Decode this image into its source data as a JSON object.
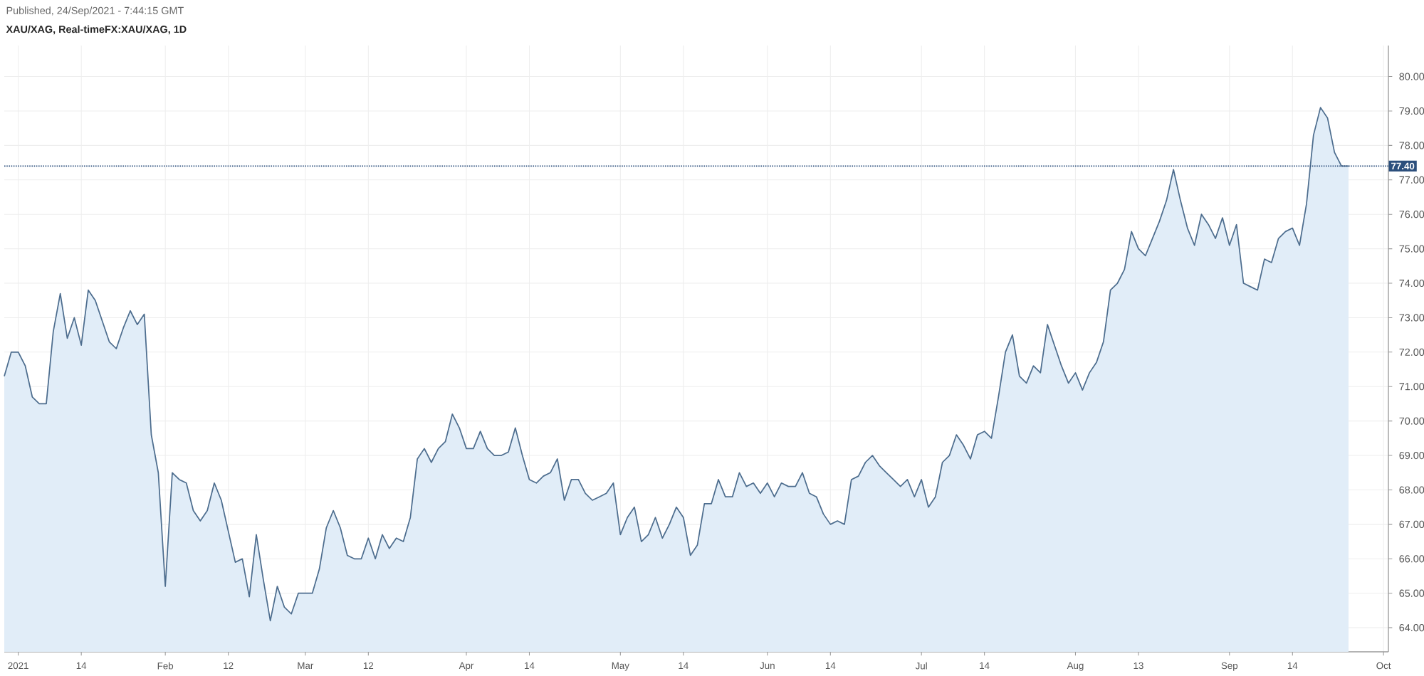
{
  "chart_data": {
    "type": "area",
    "title": "XAU/XAG, Real-timeFX:XAU/XAG, 1D",
    "annotations": [
      "Published, 24/Sep/2021 - 7:44:15 GMT"
    ],
    "categories": [
      null,
      null,
      "2021",
      null,
      null,
      null,
      null,
      null,
      null,
      null,
      null,
      "14",
      null,
      null,
      null,
      null,
      null,
      null,
      null,
      null,
      null,
      null,
      null,
      "Feb",
      null,
      null,
      null,
      null,
      null,
      null,
      null,
      null,
      "12",
      null,
      null,
      null,
      null,
      null,
      null,
      null,
      null,
      null,
      null,
      "Mar",
      null,
      null,
      null,
      null,
      null,
      null,
      null,
      null,
      "12",
      null,
      null,
      null,
      null,
      null,
      null,
      null,
      null,
      null,
      null,
      null,
      null,
      null,
      "Apr",
      null,
      null,
      null,
      null,
      null,
      null,
      null,
      null,
      "14",
      null,
      null,
      null,
      null,
      null,
      null,
      null,
      null,
      null,
      null,
      null,
      null,
      "May",
      null,
      null,
      null,
      null,
      null,
      null,
      null,
      null,
      "14",
      null,
      null,
      null,
      null,
      null,
      null,
      null,
      null,
      null,
      null,
      null,
      "Jun",
      null,
      null,
      null,
      null,
      null,
      null,
      null,
      null,
      "14",
      null,
      null,
      null,
      null,
      null,
      null,
      null,
      null,
      null,
      null,
      null,
      null,
      "Jul",
      null,
      null,
      null,
      null,
      null,
      null,
      null,
      null,
      "14",
      null,
      null,
      null,
      null,
      null,
      null,
      null,
      null,
      null,
      null,
      null,
      null,
      "Aug",
      null,
      null,
      null,
      null,
      null,
      null,
      null,
      null,
      "13",
      null,
      null,
      null,
      null,
      null,
      null,
      null,
      null,
      null,
      null,
      null,
      null,
      "Sep",
      null,
      null,
      null,
      null,
      null,
      null,
      null,
      null,
      "14",
      null,
      null,
      null,
      null,
      null,
      null,
      null,
      null,
      null,
      null,
      null,
      null,
      "Oct"
    ],
    "values": [
      71.3,
      72.0,
      72.0,
      71.6,
      70.7,
      70.5,
      70.5,
      72.6,
      73.7,
      72.4,
      73.0,
      72.2,
      73.8,
      73.5,
      72.9,
      72.3,
      72.1,
      72.7,
      73.2,
      72.8,
      73.1,
      69.6,
      68.5,
      65.2,
      68.5,
      68.3,
      68.2,
      67.4,
      67.1,
      67.4,
      68.2,
      67.7,
      66.8,
      65.9,
      66.0,
      64.9,
      66.7,
      65.4,
      64.2,
      65.2,
      64.6,
      64.4,
      65.0,
      65.0,
      65.0,
      65.7,
      66.9,
      67.4,
      66.9,
      66.1,
      66.0,
      66.0,
      66.6,
      66.0,
      66.7,
      66.3,
      66.6,
      66.5,
      67.2,
      68.9,
      69.2,
      68.8,
      69.2,
      69.4,
      70.2,
      69.8,
      69.2,
      69.2,
      69.7,
      69.2,
      69.0,
      69.0,
      69.1,
      69.8,
      69.0,
      68.3,
      68.2,
      68.4,
      68.5,
      68.9,
      67.7,
      68.3,
      68.3,
      67.9,
      67.7,
      67.8,
      67.9,
      68.2,
      66.7,
      67.2,
      67.5,
      66.5,
      66.7,
      67.2,
      66.6,
      67.0,
      67.5,
      67.2,
      66.1,
      66.4,
      67.6,
      67.6,
      68.3,
      67.8,
      67.8,
      68.5,
      68.1,
      68.2,
      67.9,
      68.2,
      67.8,
      68.2,
      68.1,
      68.1,
      68.5,
      67.9,
      67.8,
      67.3,
      67.0,
      67.1,
      67.0,
      68.3,
      68.4,
      68.8,
      69.0,
      68.7,
      68.5,
      68.3,
      68.1,
      68.3,
      67.8,
      68.3,
      67.5,
      67.8,
      68.8,
      69.0,
      69.6,
      69.3,
      68.9,
      69.6,
      69.7,
      69.5,
      70.7,
      72.0,
      72.5,
      71.3,
      71.1,
      71.6,
      71.4,
      72.8,
      72.2,
      71.6,
      71.1,
      71.4,
      70.9,
      71.4,
      71.7,
      72.3,
      73.8,
      74.0,
      74.4,
      75.5,
      75.0,
      74.8,
      75.3,
      75.8,
      76.4,
      77.3,
      76.4,
      75.6,
      75.1,
      76.0,
      75.7,
      75.3,
      75.9,
      75.1,
      75.7,
      74.0,
      73.9,
      73.8,
      74.7,
      74.6,
      75.3,
      75.5,
      75.6,
      75.1,
      76.3,
      78.3,
      79.1,
      78.8,
      77.8,
      77.4,
      77.4,
      null,
      null,
      null,
      null,
      null
    ],
    "color": "#4d6d8e",
    "ylim": [
      63.3,
      80.9
    ],
    "yticks": [
      {
        "value": 64,
        "label": "64.00"
      },
      {
        "value": 65,
        "label": "65.00"
      },
      {
        "value": 66,
        "label": "66.00"
      },
      {
        "value": 67,
        "label": "67.00"
      },
      {
        "value": 68,
        "label": "68.00"
      },
      {
        "value": 69,
        "label": "69.00"
      },
      {
        "value": 70,
        "label": "70.00"
      },
      {
        "value": 71,
        "label": "71.00"
      },
      {
        "value": 72,
        "label": "72.00"
      },
      {
        "value": 73,
        "label": "73.00"
      },
      {
        "value": 74,
        "label": "74.00"
      },
      {
        "value": 75,
        "label": "75.00"
      },
      {
        "value": 76,
        "label": "76.00"
      },
      {
        "value": 77,
        "label": "77.00"
      },
      {
        "value": 78,
        "label": "78.00"
      },
      {
        "value": 79,
        "label": "79.00"
      },
      {
        "value": 80,
        "label": "80.00"
      }
    ],
    "grid": true,
    "ref_lines": [
      {
        "axis": "y",
        "value": 77.4,
        "label": "77.40",
        "color": "#2c4f7c",
        "line_style": "dotted"
      }
    ]
  }
}
